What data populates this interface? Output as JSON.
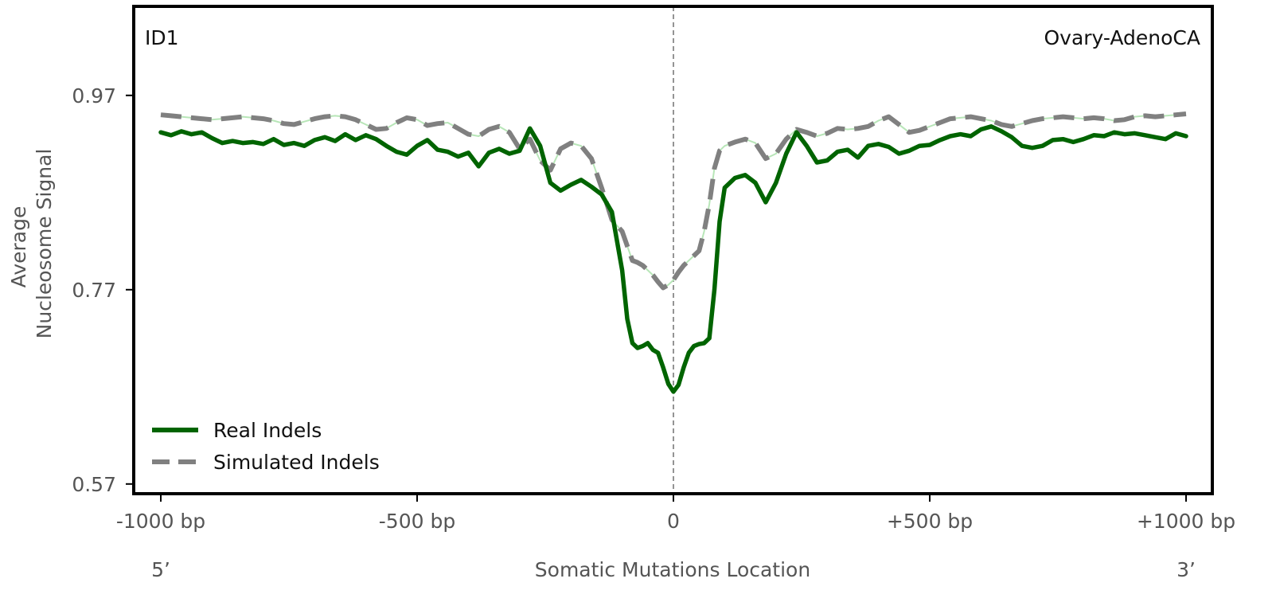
{
  "chart_data": {
    "type": "line",
    "signature_label": "ID1",
    "cancer_type_label": "Ovary-AdenoCA",
    "xlabel": "Somatic Mutations Location",
    "ylabel_line1": "Average",
    "ylabel_line2": "Nucleosome Signal",
    "five_prime_label": "5’",
    "three_prime_label": "3’",
    "xlim": [
      -1000,
      1000
    ],
    "ylim": [
      0.56,
      1.06
    ],
    "x_ticks": [
      {
        "value": -1000,
        "label": "-1000 bp"
      },
      {
        "value": -500,
        "label": "-500 bp"
      },
      {
        "value": 0,
        "label": "0"
      },
      {
        "value": 500,
        "label": "+500 bp"
      },
      {
        "value": 1000,
        "label": "+1000 bp"
      }
    ],
    "y_ticks": [
      {
        "value": 0.57,
        "label": "0.57"
      },
      {
        "value": 0.77,
        "label": "0.77"
      },
      {
        "value": 0.97,
        "label": "0.97"
      }
    ],
    "vertical_reference_x": 0,
    "legend_position": "lower-left",
    "series": [
      {
        "name": "Real Indels",
        "color": "#006400",
        "style": "solid",
        "x": [
          -1000,
          -980,
          -960,
          -940,
          -920,
          -900,
          -880,
          -860,
          -840,
          -820,
          -800,
          -780,
          -760,
          -740,
          -720,
          -700,
          -680,
          -660,
          -640,
          -620,
          -600,
          -580,
          -560,
          -540,
          -520,
          -500,
          -480,
          -460,
          -440,
          -420,
          -400,
          -380,
          -360,
          -340,
          -320,
          -300,
          -280,
          -260,
          -240,
          -220,
          -200,
          -180,
          -160,
          -140,
          -120,
          -100,
          -90,
          -80,
          -70,
          -60,
          -50,
          -40,
          -30,
          -20,
          -10,
          0,
          10,
          20,
          30,
          40,
          50,
          60,
          70,
          80,
          90,
          100,
          120,
          140,
          160,
          180,
          200,
          220,
          240,
          260,
          280,
          300,
          320,
          340,
          360,
          380,
          400,
          420,
          440,
          460,
          480,
          500,
          520,
          540,
          560,
          580,
          600,
          620,
          640,
          660,
          680,
          700,
          720,
          740,
          760,
          780,
          800,
          820,
          840,
          860,
          880,
          900,
          920,
          940,
          960,
          980,
          1000
        ],
        "y": [
          0.932,
          0.929,
          0.933,
          0.93,
          0.932,
          0.926,
          0.921,
          0.923,
          0.921,
          0.922,
          0.92,
          0.925,
          0.919,
          0.921,
          0.918,
          0.924,
          0.927,
          0.923,
          0.93,
          0.924,
          0.929,
          0.925,
          0.918,
          0.912,
          0.909,
          0.918,
          0.924,
          0.914,
          0.912,
          0.907,
          0.911,
          0.897,
          0.911,
          0.915,
          0.91,
          0.913,
          0.936,
          0.918,
          0.88,
          0.872,
          0.878,
          0.883,
          0.876,
          0.868,
          0.85,
          0.79,
          0.74,
          0.715,
          0.71,
          0.712,
          0.715,
          0.708,
          0.705,
          0.69,
          0.673,
          0.665,
          0.672,
          0.69,
          0.705,
          0.712,
          0.714,
          0.715,
          0.72,
          0.77,
          0.84,
          0.875,
          0.885,
          0.888,
          0.88,
          0.86,
          0.88,
          0.91,
          0.932,
          0.918,
          0.901,
          0.903,
          0.912,
          0.914,
          0.906,
          0.918,
          0.92,
          0.917,
          0.91,
          0.913,
          0.918,
          0.919,
          0.924,
          0.928,
          0.93,
          0.928,
          0.935,
          0.938,
          0.933,
          0.927,
          0.918,
          0.916,
          0.918,
          0.924,
          0.925,
          0.922,
          0.925,
          0.929,
          0.928,
          0.932,
          0.93,
          0.931,
          0.929,
          0.927,
          0.925,
          0.931,
          0.928
        ]
      },
      {
        "name": "Simulated Indels",
        "color": "#808080",
        "style": "dashed",
        "x": [
          -1000,
          -980,
          -960,
          -940,
          -920,
          -900,
          -880,
          -860,
          -840,
          -820,
          -800,
          -780,
          -760,
          -740,
          -720,
          -700,
          -680,
          -660,
          -640,
          -620,
          -600,
          -580,
          -560,
          -540,
          -520,
          -500,
          -480,
          -460,
          -440,
          -420,
          -400,
          -380,
          -360,
          -340,
          -320,
          -300,
          -280,
          -260,
          -240,
          -220,
          -200,
          -180,
          -160,
          -140,
          -120,
          -100,
          -90,
          -80,
          -70,
          -60,
          -50,
          -40,
          -30,
          -20,
          -10,
          0,
          10,
          20,
          30,
          40,
          50,
          60,
          70,
          80,
          90,
          100,
          120,
          140,
          160,
          180,
          200,
          220,
          240,
          260,
          280,
          300,
          320,
          340,
          360,
          380,
          400,
          420,
          440,
          460,
          480,
          500,
          520,
          540,
          560,
          580,
          600,
          620,
          640,
          660,
          680,
          700,
          720,
          740,
          760,
          780,
          800,
          820,
          840,
          860,
          880,
          900,
          920,
          940,
          960,
          980,
          1000
        ],
        "y": [
          0.95,
          0.949,
          0.948,
          0.947,
          0.946,
          0.945,
          0.946,
          0.947,
          0.948,
          0.947,
          0.946,
          0.944,
          0.941,
          0.94,
          0.943,
          0.946,
          0.948,
          0.949,
          0.948,
          0.945,
          0.94,
          0.935,
          0.936,
          0.942,
          0.947,
          0.945,
          0.939,
          0.941,
          0.942,
          0.936,
          0.93,
          0.928,
          0.935,
          0.938,
          0.932,
          0.915,
          0.925,
          0.903,
          0.893,
          0.915,
          0.921,
          0.918,
          0.905,
          0.875,
          0.842,
          0.83,
          0.815,
          0.8,
          0.798,
          0.795,
          0.79,
          0.785,
          0.778,
          0.772,
          0.775,
          0.78,
          0.788,
          0.795,
          0.8,
          0.805,
          0.81,
          0.83,
          0.858,
          0.895,
          0.913,
          0.918,
          0.922,
          0.925,
          0.921,
          0.905,
          0.91,
          0.925,
          0.935,
          0.932,
          0.928,
          0.931,
          0.936,
          0.935,
          0.936,
          0.938,
          0.944,
          0.948,
          0.94,
          0.932,
          0.934,
          0.938,
          0.942,
          0.946,
          0.947,
          0.948,
          0.946,
          0.944,
          0.94,
          0.938,
          0.941,
          0.944,
          0.946,
          0.947,
          0.948,
          0.947,
          0.946,
          0.947,
          0.946,
          0.944,
          0.945,
          0.948,
          0.949,
          0.948,
          0.949,
          0.95,
          0.951
        ]
      }
    ]
  }
}
